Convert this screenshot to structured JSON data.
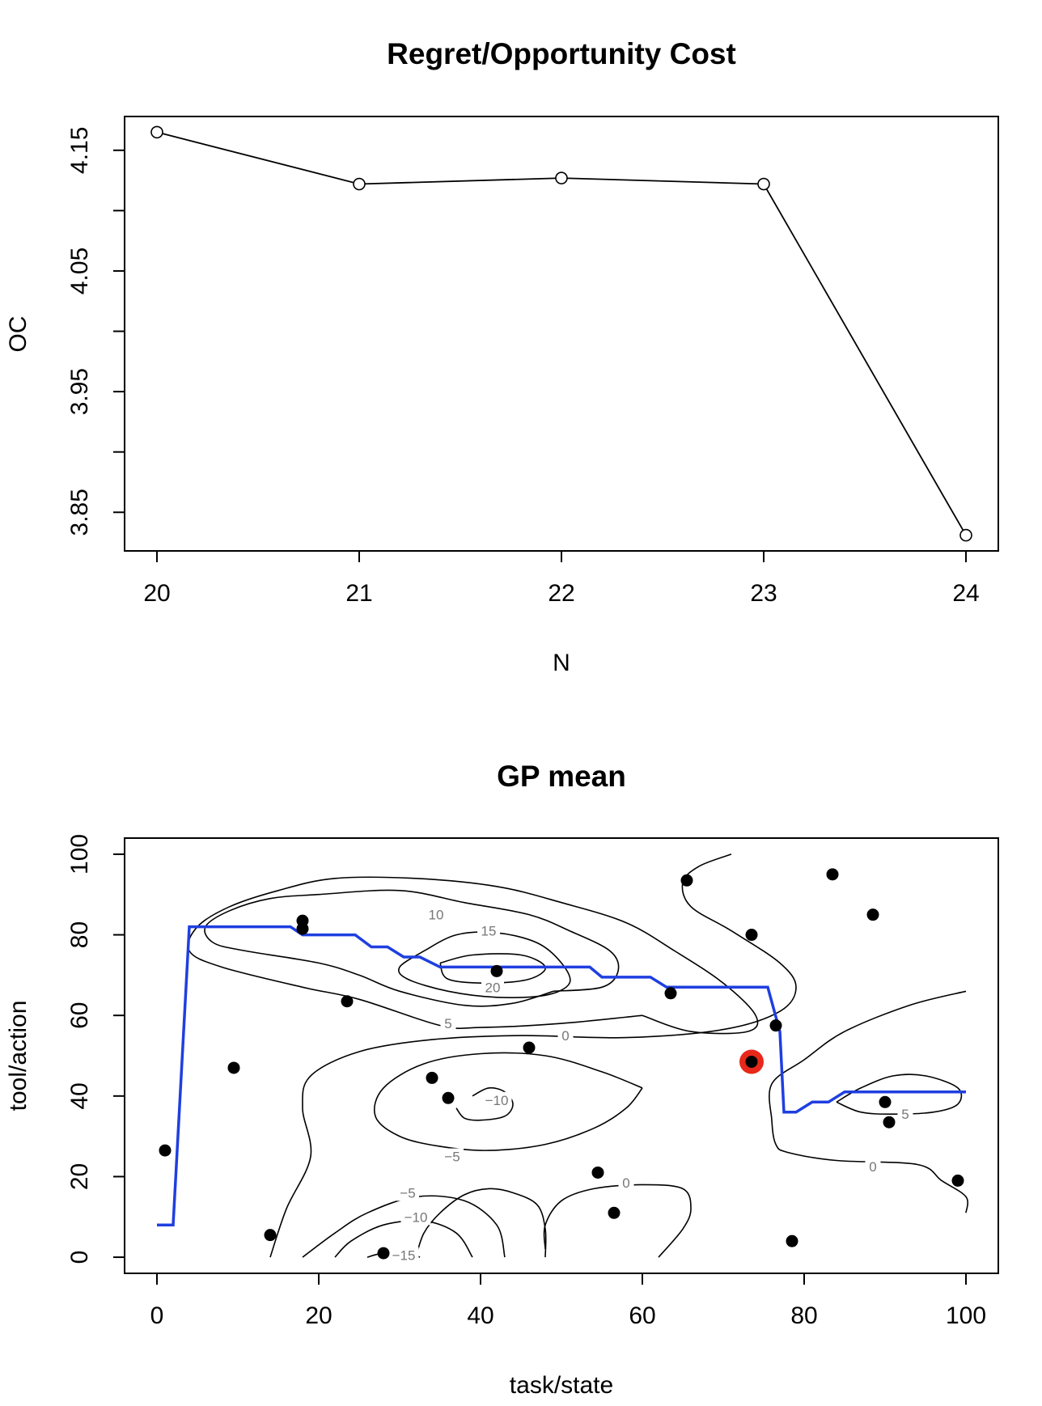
{
  "chart_data": [
    {
      "type": "line",
      "title": "Regret/Opportunity Cost",
      "xlabel": "N",
      "ylabel": "OC",
      "xlim": [
        19.84,
        24.16
      ],
      "ylim": [
        3.818,
        4.178
      ],
      "xticks": [
        20,
        21,
        22,
        23,
        24
      ],
      "xtick_labels": [
        "20",
        "21",
        "22",
        "23",
        "24"
      ],
      "yticks": [
        3.85,
        3.9,
        3.95,
        4.0,
        4.05,
        4.1,
        4.15
      ],
      "ytick_labels": [
        "3.85",
        "",
        "3.95",
        "",
        "4.05",
        "",
        "4.15"
      ],
      "markers": "open-circle",
      "grid": false,
      "x": [
        20,
        21,
        22,
        23,
        24
      ],
      "y": [
        4.165,
        4.122,
        4.127,
        4.122,
        3.831
      ]
    },
    {
      "type": "contour",
      "title": "GP mean",
      "xlabel": "task/state",
      "ylabel": "tool/action",
      "xlim": [
        -4,
        104
      ],
      "ylim": [
        -4,
        104
      ],
      "xticks": [
        0,
        20,
        40,
        60,
        80,
        100
      ],
      "xtick_labels": [
        "0",
        "20",
        "40",
        "60",
        "80",
        "100"
      ],
      "yticks": [
        0,
        20,
        40,
        60,
        80,
        100
      ],
      "ytick_labels": [
        "0",
        "20",
        "40",
        "60",
        "80",
        "100"
      ],
      "grid": false,
      "contours": [
        {
          "level": "10",
          "points": [
            [
              49,
              66
            ],
            [
              44,
              63
            ],
            [
              38,
              62.5
            ],
            [
              30,
              66
            ],
            [
              25,
              70
            ],
            [
              20,
              73
            ],
            [
              11,
              76
            ],
            [
              7,
              78
            ],
            [
              6,
              82
            ],
            [
              9,
              86
            ],
            [
              14,
              89
            ],
            [
              20,
              90
            ],
            [
              30,
              91
            ],
            [
              38,
              88
            ],
            [
              46,
              85
            ],
            [
              51,
              81
            ],
            [
              56,
              76
            ],
            [
              57,
              71
            ],
            [
              55,
              67
            ],
            [
              49,
              66
            ]
          ],
          "label_at": [
            34.5,
            85
          ]
        },
        {
          "level": "5",
          "points": [
            [
              60,
              60
            ],
            [
              50,
              58
            ],
            [
              40,
              57
            ],
            [
              35,
              57.5
            ],
            [
              25,
              64
            ],
            [
              18,
              67
            ],
            [
              8,
              72
            ],
            [
              4,
              76
            ],
            [
              5,
              82
            ],
            [
              9,
              87
            ],
            [
              15,
              91
            ],
            [
              22,
              94
            ],
            [
              32,
              94
            ],
            [
              42,
              92
            ],
            [
              50,
              88
            ],
            [
              58,
              83
            ],
            [
              64,
              76
            ],
            [
              70,
              68
            ],
            [
              74,
              60
            ],
            [
              73,
              56
            ],
            [
              66,
              56
            ],
            [
              60,
              60
            ]
          ],
          "label_at": [
            36,
            58
          ]
        },
        {
          "level": "15",
          "points": [
            [
              33,
              76
            ],
            [
              30,
              72
            ],
            [
              31,
              69
            ],
            [
              36,
              66
            ],
            [
              42,
              64.5
            ],
            [
              48,
              65
            ],
            [
              51,
              68
            ],
            [
              50,
              73
            ],
            [
              47,
              78
            ],
            [
              42,
              80.5
            ],
            [
              37,
              80
            ],
            [
              33,
              76
            ]
          ],
          "label_at": [
            41,
            81
          ]
        },
        {
          "level": "20",
          "points": [
            [
              35,
              73
            ],
            [
              39,
              75
            ],
            [
              45,
              75
            ],
            [
              48,
              72
            ],
            [
              46,
              69
            ],
            [
              41,
              68
            ],
            [
              36,
              69
            ],
            [
              35,
              73
            ]
          ],
          "label_at": [
            41.5,
            67
          ]
        },
        {
          "level": "0",
          "points": [
            [
              71,
              100
            ],
            [
              67,
              97
            ],
            [
              65,
              93
            ],
            [
              66,
              87
            ],
            [
              71,
              81
            ],
            [
              77,
              73
            ],
            [
              79,
              67
            ],
            [
              77,
              61
            ],
            [
              70,
              56.5
            ],
            [
              58,
              54.5
            ],
            [
              45,
              55
            ],
            [
              34,
              54
            ],
            [
              25,
              51
            ],
            [
              19,
              45
            ],
            [
              18,
              37
            ],
            [
              19,
              25
            ],
            [
              16,
              12
            ],
            [
              14,
              0
            ]
          ],
          "label_at": [
            50.5,
            55
          ]
        },
        {
          "level": "0",
          "points": [
            [
              100,
              66
            ],
            [
              93,
              62.5
            ],
            [
              85,
              56
            ],
            [
              80,
              49
            ],
            [
              76,
              43
            ],
            [
              76,
              34
            ],
            [
              76.5,
              28
            ],
            [
              78,
              26
            ],
            [
              84,
              24
            ],
            [
              94,
              23
            ],
            [
              97,
              19
            ],
            [
              100,
              15
            ],
            [
              100,
              11
            ]
          ],
          "label_at": [
            88.5,
            22.5
          ]
        },
        {
          "level": "5",
          "points": [
            [
              84,
              38.5
            ],
            [
              87,
              42
            ],
            [
              91,
              45
            ],
            [
              95,
              45
            ],
            [
              99,
              42
            ],
            [
              99,
              38
            ],
            [
              96,
              36
            ],
            [
              91,
              35.5
            ],
            [
              87,
              36
            ],
            [
              84,
              38.5
            ]
          ],
          "label_at": [
            92.5,
            35.5
          ]
        },
        {
          "level": "-5",
          "points": [
            [
              60,
              42
            ],
            [
              55,
              46
            ],
            [
              48,
              50
            ],
            [
              40,
              50.5
            ],
            [
              33,
              48
            ],
            [
              28,
              42
            ],
            [
              27,
              35
            ],
            [
              30,
              30
            ],
            [
              35,
              27.5
            ],
            [
              41,
              26.5
            ],
            [
              48,
              28
            ],
            [
              54,
              32
            ],
            [
              58,
              37
            ],
            [
              60,
              42
            ]
          ],
          "label_at": [
            36.5,
            25
          ]
        },
        {
          "level": "-10",
          "points": [
            [
              39,
              40
            ],
            [
              41,
              42
            ],
            [
              43,
              41
            ],
            [
              44,
              38
            ],
            [
              43,
              35
            ],
            [
              40,
              34
            ],
            [
              38,
              34.5
            ],
            [
              37,
              37
            ]
          ],
          "label_at": [
            42,
            39
          ]
        },
        {
          "level": "0",
          "points": [
            [
              48,
              0
            ],
            [
              48,
              7
            ],
            [
              47,
              13
            ],
            [
              44,
              16
            ],
            [
              41,
              17
            ],
            [
              38,
              15.5
            ],
            [
              35,
              11
            ],
            [
              33,
              6
            ],
            [
              32,
              0
            ]
          ],
          "label_at": [
            58,
            18.5
          ]
        },
        {
          "level": "0",
          "points": [
            [
              62,
              0
            ],
            [
              65,
              7
            ],
            [
              66,
              12
            ],
            [
              65,
              17
            ],
            [
              60,
              18
            ],
            [
              54,
              17
            ],
            [
              50,
              14
            ],
            [
              48,
              8
            ],
            [
              48,
              2
            ]
          ],
          "label_at": [
            58,
            18.5
          ]
        },
        {
          "level": "-5",
          "points": [
            [
              18,
              0
            ],
            [
              22,
              6
            ],
            [
              26,
              11
            ],
            [
              32,
              15
            ],
            [
              38,
              14
            ],
            [
              42,
              8
            ],
            [
              43,
              0
            ]
          ],
          "label_at": [
            31,
            16
          ]
        },
        {
          "level": "-10",
          "points": [
            [
              22,
              0
            ],
            [
              24,
              4
            ],
            [
              28,
              8
            ],
            [
              33,
              9
            ],
            [
              37,
              6
            ],
            [
              39,
              0
            ]
          ],
          "label_at": [
            32,
            10
          ]
        },
        {
          "level": "-15",
          "points": [
            [
              26,
              0
            ],
            [
              28,
              1
            ],
            [
              30,
              0.5
            ]
          ],
          "label_at": [
            30.5,
            0.5
          ]
        },
        {
          "level": "-15",
          "points": [
            [
              32,
              0.5
            ],
            [
              32.5,
              0
            ]
          ],
          "label_at": [
            30.5,
            0.5
          ]
        }
      ],
      "optimal_policy_line": {
        "color": "#1f3fe0",
        "points": [
          [
            0,
            8
          ],
          [
            2,
            8
          ],
          [
            4,
            82
          ],
          [
            16.5,
            82
          ],
          [
            18,
            80
          ],
          [
            24.5,
            80
          ],
          [
            26.5,
            77
          ],
          [
            28.5,
            77
          ],
          [
            30.5,
            74.5
          ],
          [
            32.5,
            74.5
          ],
          [
            35,
            72
          ],
          [
            53.5,
            72
          ],
          [
            55,
            69.5
          ],
          [
            61,
            69.5
          ],
          [
            63,
            67
          ],
          [
            75.5,
            67
          ],
          [
            77,
            56
          ],
          [
            77.5,
            36
          ],
          [
            79,
            36
          ],
          [
            81,
            38.5
          ],
          [
            83,
            38.5
          ],
          [
            85,
            41
          ],
          [
            100,
            41
          ]
        ]
      },
      "observations": [
        {
          "x": 1,
          "y": 26.5
        },
        {
          "x": 9.5,
          "y": 47
        },
        {
          "x": 14,
          "y": 5.5
        },
        {
          "x": 18,
          "y": 83.5
        },
        {
          "x": 18,
          "y": 81.5
        },
        {
          "x": 23.5,
          "y": 63.5
        },
        {
          "x": 28,
          "y": 1
        },
        {
          "x": 34,
          "y": 44.5
        },
        {
          "x": 36,
          "y": 39.5
        },
        {
          "x": 42,
          "y": 71
        },
        {
          "x": 46,
          "y": 52
        },
        {
          "x": 54.5,
          "y": 21
        },
        {
          "x": 56.5,
          "y": 11
        },
        {
          "x": 63.5,
          "y": 65.5
        },
        {
          "x": 65.5,
          "y": 93.5
        },
        {
          "x": 73.5,
          "y": 80
        },
        {
          "x": 76.5,
          "y": 57.5
        },
        {
          "x": 78.5,
          "y": 4
        },
        {
          "x": 83.5,
          "y": 95
        },
        {
          "x": 88.5,
          "y": 85
        },
        {
          "x": 90,
          "y": 38.5
        },
        {
          "x": 90.5,
          "y": 33.5
        },
        {
          "x": 99,
          "y": 19
        }
      ],
      "highlighted_point": {
        "x": 73.5,
        "y": 48.5,
        "ring_color": "#e8281a"
      }
    }
  ]
}
